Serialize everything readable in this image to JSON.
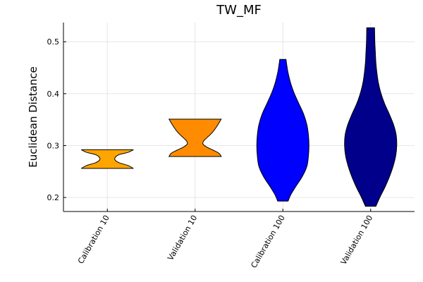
{
  "chart_data": {
    "type": "violin",
    "title": "TW_MF",
    "xlabel": "",
    "ylabel": "Euclidean Distance",
    "ylim": [
      0.173,
      0.537
    ],
    "yticks": [
      0.2,
      0.3,
      0.4,
      0.5
    ],
    "ytick_labels": [
      "0.2",
      "0.3",
      "0.4",
      "0.5"
    ],
    "grid": true,
    "categories": [
      "Calibration 10",
      "Validation 10",
      "Calibration 100",
      "Validation 100"
    ],
    "series": [
      {
        "category": "Calibration 10",
        "color": "#FFA500",
        "min": 0.256,
        "max": 0.292,
        "profile": [
          [
            0.256,
            1.0
          ],
          [
            0.2615,
            0.8
          ],
          [
            0.267,
            0.45
          ],
          [
            0.272,
            0.3
          ],
          [
            0.277,
            0.3
          ],
          [
            0.2825,
            0.45
          ],
          [
            0.287,
            0.8
          ],
          [
            0.292,
            1.0
          ]
        ]
      },
      {
        "category": "Validation 10",
        "color": "#FF8C00",
        "min": 0.279,
        "max": 0.351,
        "profile": [
          [
            0.279,
            1.0
          ],
          [
            0.285,
            0.92
          ],
          [
            0.291,
            0.7
          ],
          [
            0.297,
            0.45
          ],
          [
            0.303,
            0.3
          ],
          [
            0.309,
            0.33
          ],
          [
            0.315,
            0.45
          ],
          [
            0.322,
            0.6
          ],
          [
            0.329,
            0.72
          ],
          [
            0.336,
            0.82
          ],
          [
            0.344,
            0.92
          ],
          [
            0.351,
            1.0
          ]
        ]
      },
      {
        "category": "Calibration 100",
        "color": "#0000FF",
        "min": 0.193,
        "max": 0.466,
        "profile": [
          [
            0.193,
            0.2
          ],
          [
            0.205,
            0.3
          ],
          [
            0.22,
            0.48
          ],
          [
            0.24,
            0.74
          ],
          [
            0.26,
            0.92
          ],
          [
            0.28,
            0.98
          ],
          [
            0.3,
            1.0
          ],
          [
            0.32,
            0.98
          ],
          [
            0.34,
            0.92
          ],
          [
            0.36,
            0.8
          ],
          [
            0.38,
            0.62
          ],
          [
            0.4,
            0.44
          ],
          [
            0.42,
            0.3
          ],
          [
            0.44,
            0.2
          ],
          [
            0.455,
            0.15
          ],
          [
            0.466,
            0.12
          ]
        ]
      },
      {
        "category": "Validation 100",
        "color": "#00008B",
        "min": 0.183,
        "max": 0.527,
        "profile": [
          [
            0.183,
            0.2
          ],
          [
            0.2,
            0.35
          ],
          [
            0.22,
            0.55
          ],
          [
            0.24,
            0.72
          ],
          [
            0.26,
            0.86
          ],
          [
            0.28,
            0.96
          ],
          [
            0.3,
            1.0
          ],
          [
            0.32,
            0.98
          ],
          [
            0.34,
            0.88
          ],
          [
            0.36,
            0.72
          ],
          [
            0.38,
            0.54
          ],
          [
            0.4,
            0.4
          ],
          [
            0.42,
            0.3
          ],
          [
            0.44,
            0.24
          ],
          [
            0.46,
            0.2
          ],
          [
            0.48,
            0.18
          ],
          [
            0.5,
            0.16
          ],
          [
            0.527,
            0.15
          ]
        ]
      }
    ]
  }
}
